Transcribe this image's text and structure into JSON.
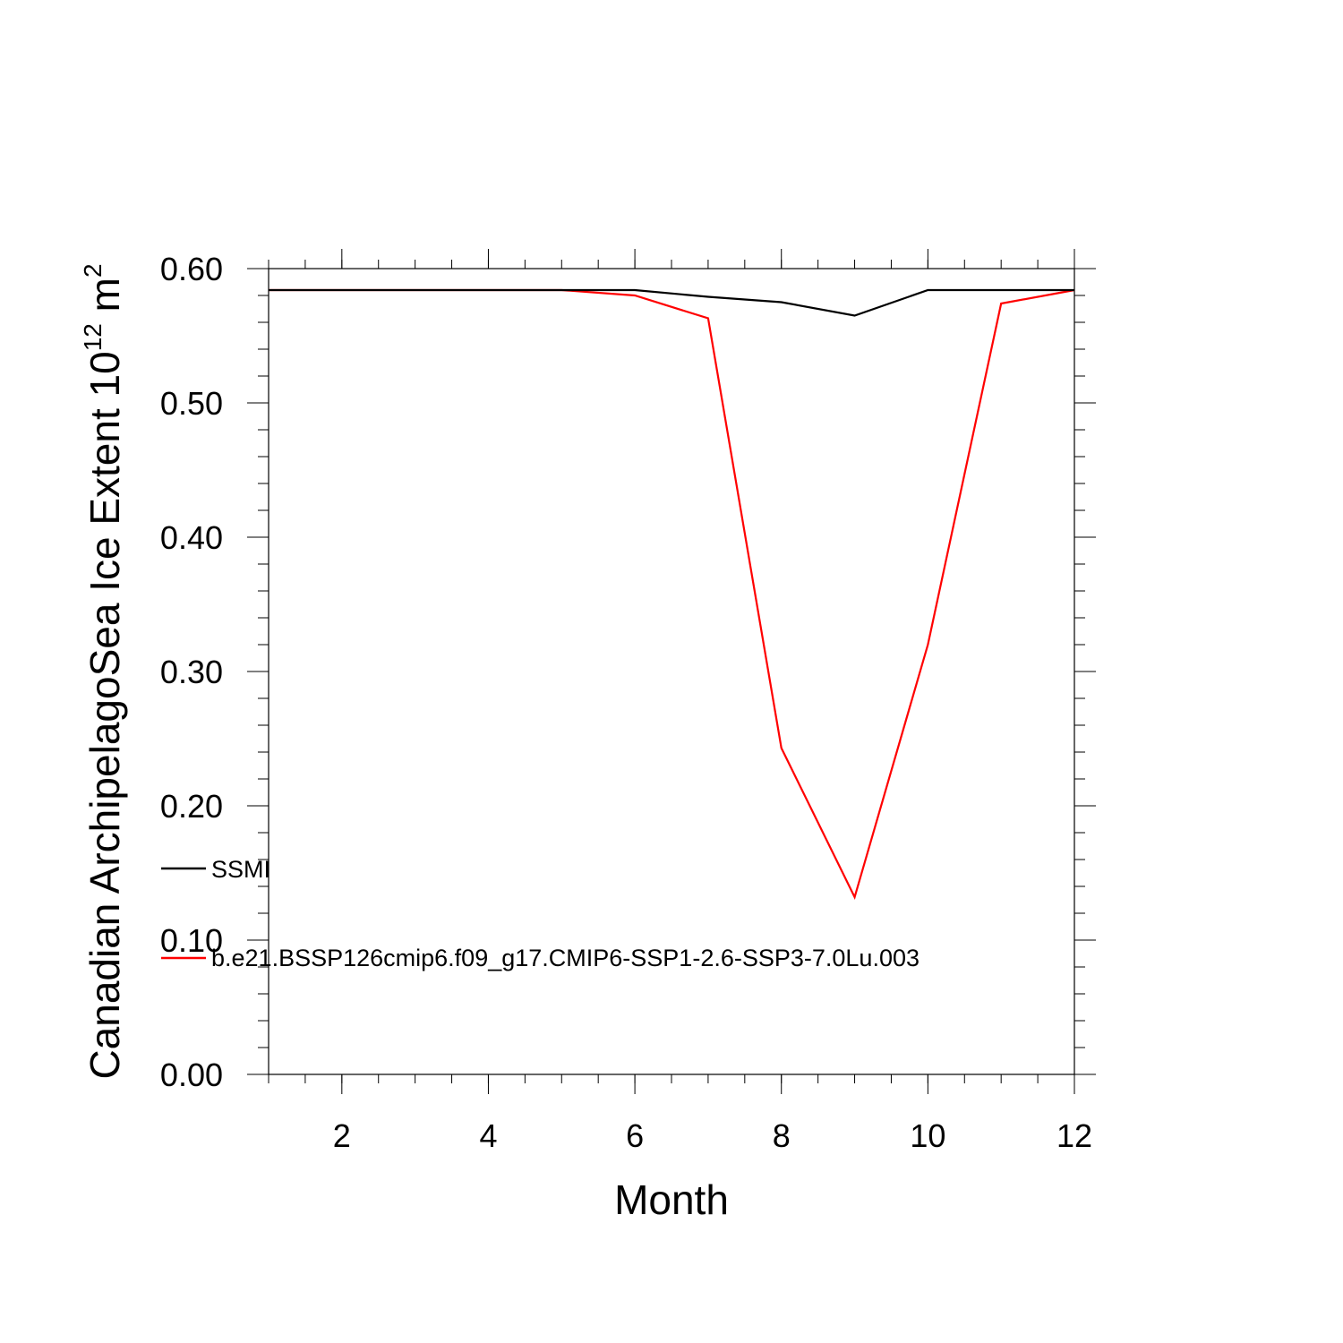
{
  "chart_data": {
    "type": "line",
    "xlabel": "Month",
    "ylabel": "Canadian ArchipelagoSea Ice Extent 10",
    "ylabel_exponent": "12",
    "ylabel_unit": " m",
    "ylabel_unit_exponent": "2",
    "xlim": [
      1,
      12
    ],
    "ylim": [
      0.0,
      0.6
    ],
    "x_major_ticks": [
      2,
      4,
      6,
      8,
      10,
      12
    ],
    "x_tick_labels": [
      "2",
      "4",
      "6",
      "8",
      "10",
      "12"
    ],
    "y_major_ticks": [
      0.0,
      0.1,
      0.2,
      0.3,
      0.4,
      0.5,
      0.6
    ],
    "y_tick_labels": [
      "0.00",
      "0.10",
      "0.20",
      "0.30",
      "0.40",
      "0.50",
      "0.60"
    ],
    "legend_position": "left",
    "x": [
      1,
      2,
      3,
      4,
      5,
      6,
      7,
      8,
      9,
      10,
      11,
      12
    ],
    "series": [
      {
        "name": "SSMI",
        "color": "#000000",
        "values": [
          0.584,
          0.584,
          0.584,
          0.584,
          0.584,
          0.584,
          0.579,
          0.575,
          0.565,
          0.584,
          0.584,
          0.584
        ]
      },
      {
        "name": "b.e21.BSSP126cmip6.f09_g17.CMIP6-SSP1-2.6-SSP3-7.0Lu.003",
        "color": "#ff0000",
        "values": [
          0.584,
          0.584,
          0.584,
          0.584,
          0.584,
          0.58,
          0.563,
          0.243,
          0.132,
          0.32,
          0.574,
          0.584
        ]
      }
    ]
  }
}
